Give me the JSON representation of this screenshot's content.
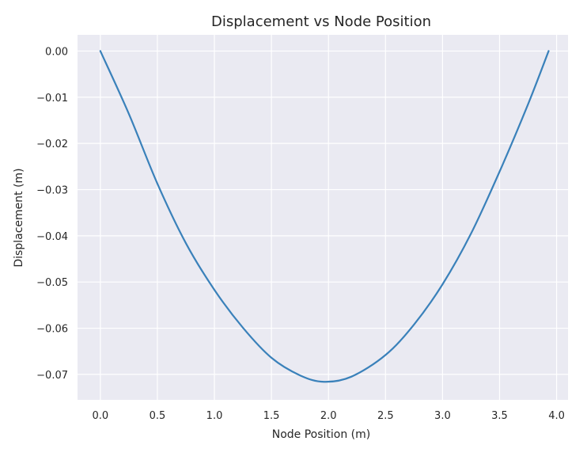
{
  "chart_data": {
    "type": "line",
    "title": "Displacement vs Node Position",
    "xlabel": "Node Position (m)",
    "ylabel": "Displacement (m)",
    "xlim": [
      -0.2,
      4.1
    ],
    "ylim": [
      -0.0755,
      0.0035
    ],
    "xticks": [
      0.0,
      0.5,
      1.0,
      1.5,
      2.0,
      2.5,
      3.0,
      3.5,
      4.0
    ],
    "xtick_labels": [
      "0.0",
      "0.5",
      "1.0",
      "1.5",
      "2.0",
      "2.5",
      "3.0",
      "3.5",
      "4.0"
    ],
    "yticks": [
      0.0,
      -0.01,
      -0.02,
      -0.03,
      -0.04,
      -0.05,
      -0.06,
      -0.07
    ],
    "ytick_labels": [
      "0.00",
      "−0.01",
      "−0.02",
      "−0.03",
      "−0.04",
      "−0.05",
      "−0.06",
      "−0.07"
    ],
    "grid": true,
    "style": {
      "background": "#eaeaf2",
      "grid_color": "#ffffff",
      "line_color": "#3a81ba"
    },
    "series": [
      {
        "x": [
          0.0,
          0.25,
          0.5,
          0.75,
          1.0,
          1.25,
          1.5,
          1.75,
          1.96,
          2.2,
          2.5,
          2.75,
          3.0,
          3.25,
          3.5,
          3.75,
          3.93
        ],
        "values": [
          0.0,
          -0.0136,
          -0.0287,
          -0.0416,
          -0.0517,
          -0.0599,
          -0.0664,
          -0.0702,
          -0.0716,
          -0.0705,
          -0.0658,
          -0.0592,
          -0.0505,
          -0.0395,
          -0.0261,
          -0.0115,
          0.0
        ]
      }
    ]
  }
}
